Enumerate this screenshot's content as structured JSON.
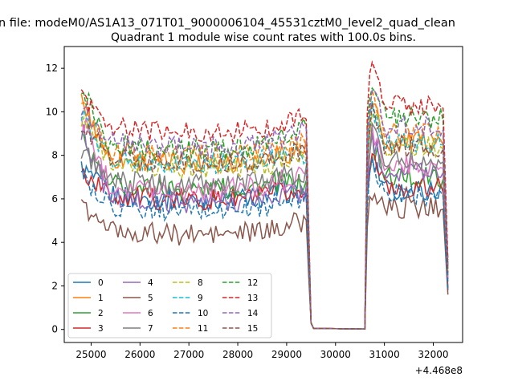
{
  "figure": {
    "suptitle": "n file: modeM0/AS1A13_071T01_9000006104_45531cztM0_level2_quad_clean",
    "title": "Quadrant 1 module wise count rates with 100.0s bins.",
    "x_offset_label": "+4.468e8"
  },
  "chart_data": {
    "type": "line",
    "title": "Quadrant 1 module wise count rates with 100.0s bins.",
    "xlabel": "",
    "ylabel": "",
    "x_offset": "+4.468e8",
    "xlim": [
      24450,
      32600
    ],
    "ylim": [
      -0.6,
      13.0
    ],
    "xticks": [
      25000,
      26000,
      27000,
      28000,
      29000,
      30000,
      31000,
      32000
    ],
    "yticks": [
      0,
      2,
      4,
      6,
      8,
      10,
      12
    ],
    "segments": {
      "seg1_start": 24800,
      "seg1_end": 29400,
      "gap_start": 29500,
      "gap_end": 30600,
      "seg2_start": 30600,
      "seg2_end": 32300
    },
    "grid": false,
    "legend": {
      "placement": "lower-left",
      "columns": 4
    },
    "series": [
      {
        "name": "0",
        "color": "#1f77b4",
        "dash": "solid",
        "level1": 6.3,
        "start1": 7.4,
        "end1": 6.3,
        "level2": 6.4,
        "peak2": 7.8,
        "end2": 1.8
      },
      {
        "name": "1",
        "color": "#ff7f0e",
        "dash": "solid",
        "level1": 8.0,
        "start1": 10.5,
        "end1": 8.3,
        "level2": 8.6,
        "peak2": 10.6,
        "end2": 2.8
      },
      {
        "name": "2",
        "color": "#2ca02c",
        "dash": "solid",
        "level1": 6.8,
        "start1": 8.7,
        "end1": 6.6,
        "level2": 7.0,
        "peak2": 8.6,
        "end2": 2.2
      },
      {
        "name": "3",
        "color": "#d62728",
        "dash": "solid",
        "level1": 6.3,
        "start1": 7.2,
        "end1": 6.2,
        "level2": 6.5,
        "peak2": 8.2,
        "end2": 1.9
      },
      {
        "name": "4",
        "color": "#9467bd",
        "dash": "solid",
        "level1": 6.2,
        "start1": 9.2,
        "end1": 6.3,
        "level2": 7.3,
        "peak2": 8.9,
        "end2": 2.3
      },
      {
        "name": "5",
        "color": "#8c564b",
        "dash": "solid",
        "level1": 4.7,
        "start1": 5.6,
        "end1": 5.0,
        "level2": 5.6,
        "peak2": 6.3,
        "end2": 1.6
      },
      {
        "name": "6",
        "color": "#e377c2",
        "dash": "solid",
        "level1": 6.8,
        "start1": 9.8,
        "end1": 7.0,
        "level2": 7.5,
        "peak2": 9.2,
        "end2": 2.4
      },
      {
        "name": "7",
        "color": "#7f7f7f",
        "dash": "solid",
        "level1": 7.0,
        "start1": 8.3,
        "end1": 7.1,
        "level2": 7.8,
        "peak2": 9.4,
        "end2": 2.5
      },
      {
        "name": "8",
        "color": "#bcbd22",
        "dash": "dashed",
        "level1": 7.8,
        "start1": 9.6,
        "end1": 7.9,
        "level2": 8.4,
        "peak2": 10.3,
        "end2": 2.7
      },
      {
        "name": "9",
        "color": "#17becf",
        "dash": "dashed",
        "level1": 8.0,
        "start1": 9.8,
        "end1": 8.1,
        "level2": 8.6,
        "peak2": 10.4,
        "end2": 2.8
      },
      {
        "name": "10",
        "color": "#1f77b4",
        "dash": "dashed",
        "level1": 5.8,
        "start1": 7.0,
        "end1": 5.9,
        "level2": 6.2,
        "peak2": 7.8,
        "end2": 1.8
      },
      {
        "name": "11",
        "color": "#ff7f0e",
        "dash": "dashed",
        "level1": 8.4,
        "start1": 10.2,
        "end1": 8.5,
        "level2": 9.0,
        "peak2": 11.0,
        "end2": 2.9
      },
      {
        "name": "12",
        "color": "#2ca02c",
        "dash": "dashed",
        "level1": 8.6,
        "start1": 11.2,
        "end1": 9.3,
        "level2": 9.7,
        "peak2": 11.5,
        "end2": 3.0
      },
      {
        "name": "13",
        "color": "#d62728",
        "dash": "dashed",
        "level1": 9.4,
        "start1": 10.8,
        "end1": 9.9,
        "level2": 10.3,
        "peak2": 12.4,
        "end2": 3.2
      },
      {
        "name": "14",
        "color": "#9467bd",
        "dash": "dashed",
        "level1": 8.7,
        "start1": 10.1,
        "end1": 9.1,
        "level2": 9.3,
        "peak2": 11.0,
        "end2": 2.9
      },
      {
        "name": "15",
        "color": "#8c564b",
        "dash": "dashed",
        "level1": 8.0,
        "start1": 9.5,
        "end1": 8.1,
        "level2": 8.4,
        "peak2": 10.2,
        "end2": 2.6
      }
    ]
  }
}
